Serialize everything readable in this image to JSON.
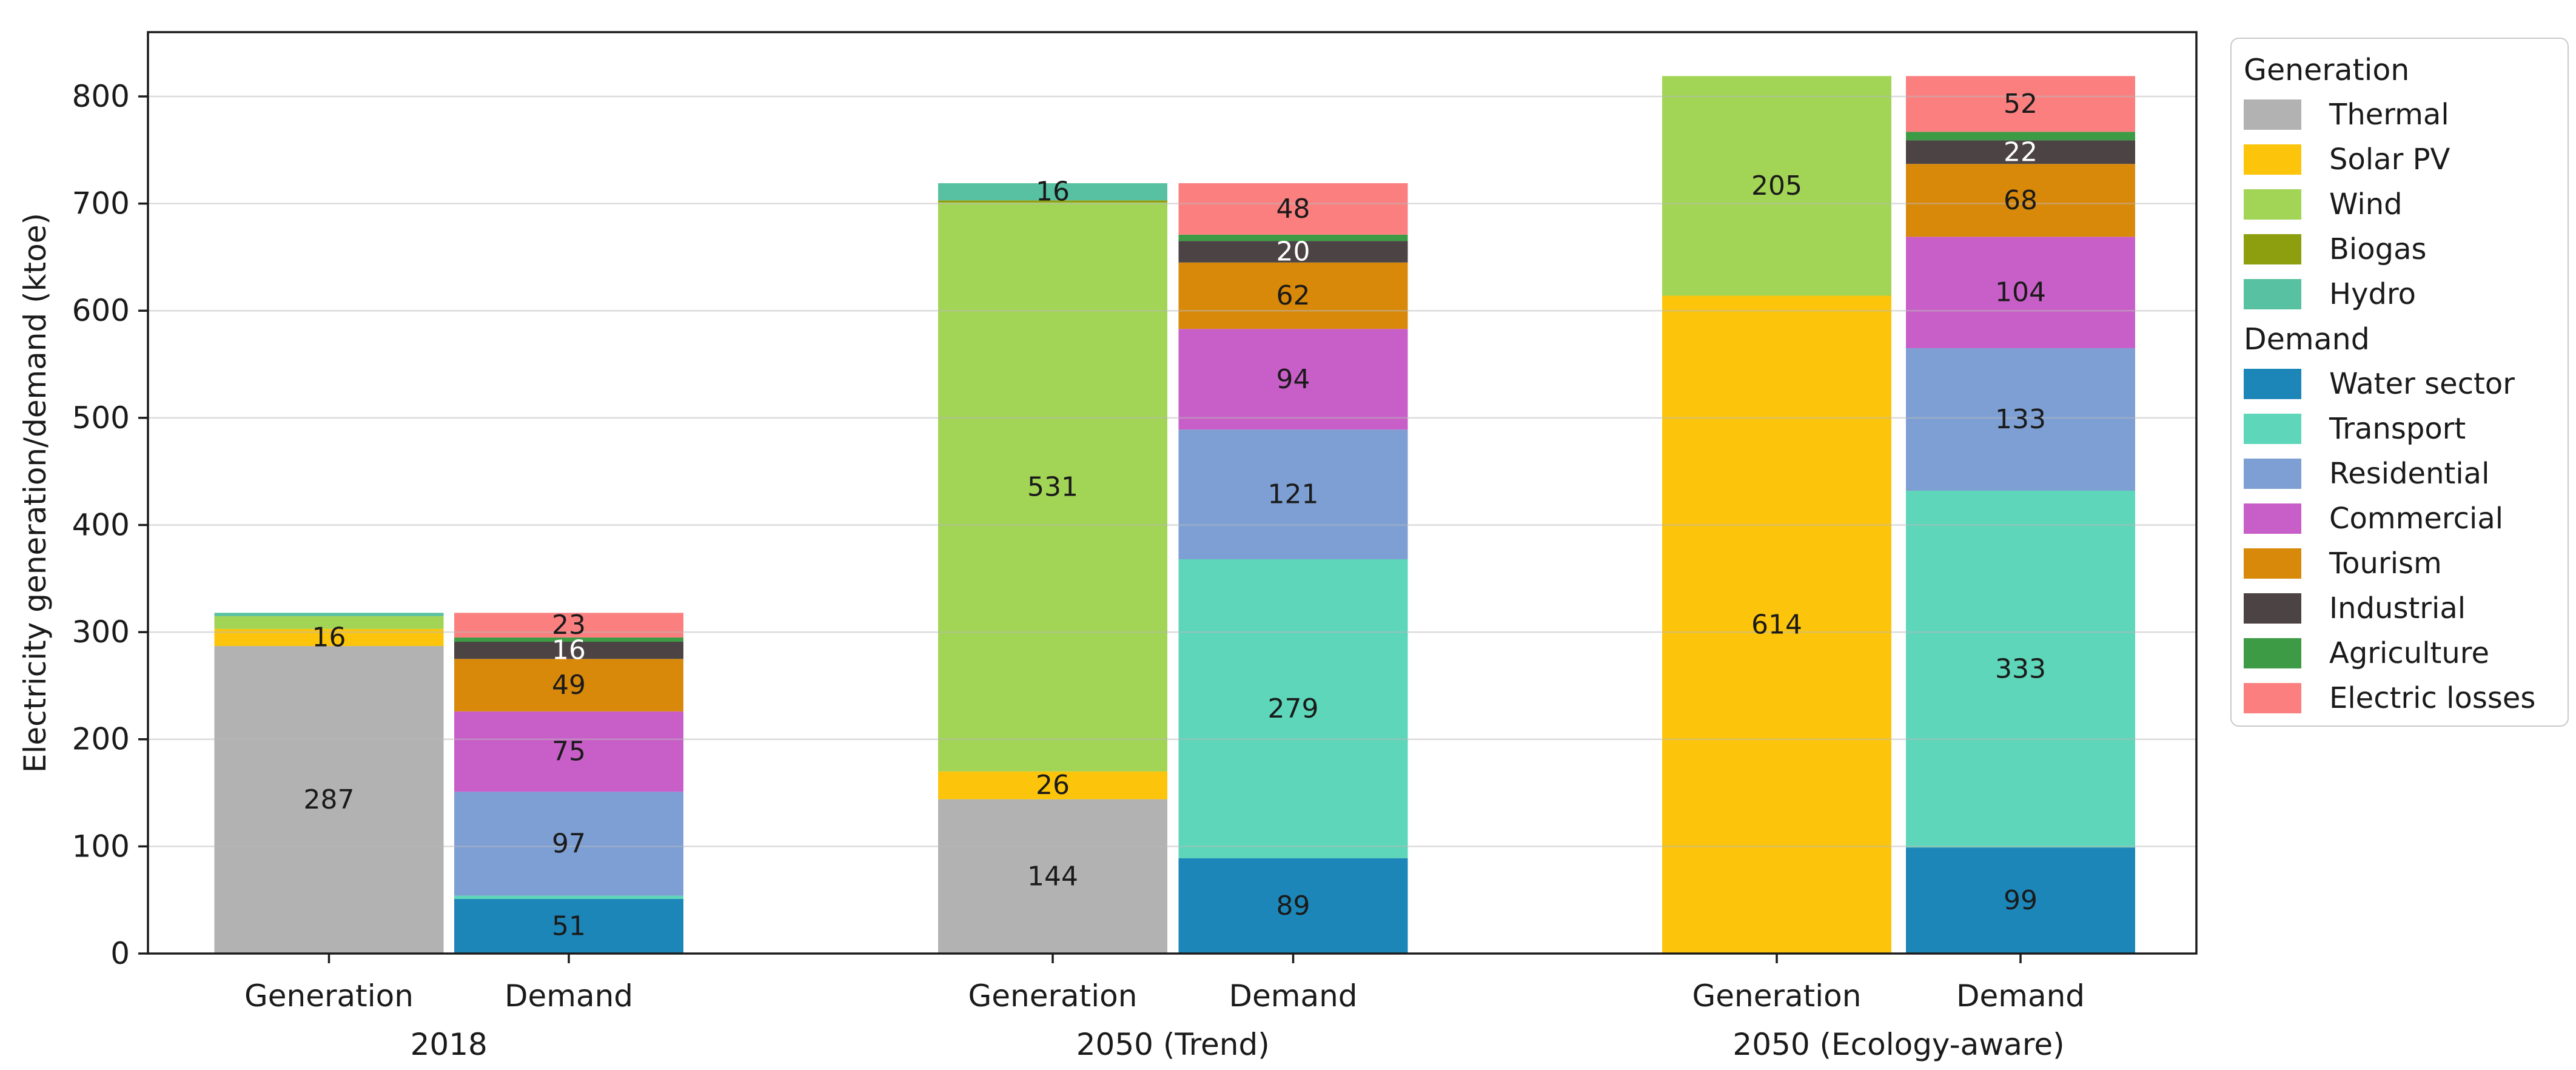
{
  "figure": {
    "background": "#ffffff"
  },
  "chart_data": {
    "type": "bar",
    "stacked": true,
    "title": "",
    "xlabel": "",
    "ylabel": "Electricity generation/demand (ktoe)",
    "ylim": [
      0,
      860
    ],
    "yticks": [
      0,
      100,
      200,
      300,
      400,
      500,
      600,
      700,
      800
    ],
    "grid": "horizontal",
    "legend_position": "right",
    "label_min": 16,
    "series_order": {
      "generation": [
        "Thermal",
        "Solar PV",
        "Wind",
        "Biogas",
        "Hydro"
      ],
      "demand": [
        "Water sector",
        "Transport",
        "Residential",
        "Commercial",
        "Tourism",
        "Industrial",
        "Agriculture",
        "Electric losses"
      ]
    },
    "palette": {
      "Thermal": {
        "color": "#b2b2b2",
        "label_color": "#1a1a1a"
      },
      "Solar PV": {
        "color": "#fcc50b",
        "label_color": "#1a1a1a"
      },
      "Wind": {
        "color": "#a2d455",
        "label_color": "#1a1a1a"
      },
      "Biogas": {
        "color": "#8d9f0f",
        "label_color": "#1a1a1a"
      },
      "Hydro": {
        "color": "#58c1a2",
        "label_color": "#1a1a1a"
      },
      "Water sector": {
        "color": "#1d86b8",
        "label_color": "#1a1a1a"
      },
      "Transport": {
        "color": "#5dd6b9",
        "label_color": "#1a1a1a"
      },
      "Residential": {
        "color": "#7d9fd3",
        "label_color": "#1a1a1a"
      },
      "Commercial": {
        "color": "#c85fc8",
        "label_color": "#1a1a1a"
      },
      "Tourism": {
        "color": "#d8890a",
        "label_color": "#1a1a1a"
      },
      "Industrial": {
        "color": "#4b4344",
        "label_color": "#ffffff"
      },
      "Agriculture": {
        "color": "#3e9b45",
        "label_color": "#1a1a1a"
      },
      "Electric losses": {
        "color": "#fb7f7f",
        "label_color": "#1a1a1a"
      }
    },
    "groups": [
      {
        "label": "2018",
        "bars": [
          {
            "label": "Generation",
            "type": "generation",
            "segments": {
              "Thermal": 287,
              "Solar PV": 16,
              "Wind": 12,
              "Biogas": 0,
              "Hydro": 3
            }
          },
          {
            "label": "Demand",
            "type": "demand",
            "segments": {
              "Water sector": 51,
              "Transport": 3,
              "Residential": 97,
              "Commercial": 75,
              "Tourism": 49,
              "Industrial": 16,
              "Agriculture": 4,
              "Electric losses": 23
            }
          }
        ]
      },
      {
        "label": "2050 (Trend)",
        "bars": [
          {
            "label": "Generation",
            "type": "generation",
            "segments": {
              "Thermal": 144,
              "Solar PV": 26,
              "Wind": 531,
              "Biogas": 2,
              "Hydro": 16
            }
          },
          {
            "label": "Demand",
            "type": "demand",
            "segments": {
              "Water sector": 89,
              "Transport": 279,
              "Residential": 121,
              "Commercial": 94,
              "Tourism": 62,
              "Industrial": 20,
              "Agriculture": 6,
              "Electric losses": 48
            }
          }
        ]
      },
      {
        "label": "2050 (Ecology-aware)",
        "bars": [
          {
            "label": "Generation",
            "type": "generation",
            "segments": {
              "Thermal": 0,
              "Solar PV": 614,
              "Wind": 205,
              "Biogas": 0,
              "Hydro": 0
            }
          },
          {
            "label": "Demand",
            "type": "demand",
            "segments": {
              "Water sector": 99,
              "Transport": 333,
              "Residential": 133,
              "Commercial": 104,
              "Tourism": 68,
              "Industrial": 22,
              "Agriculture": 8,
              "Electric losses": 52
            }
          }
        ]
      }
    ]
  },
  "legend": {
    "sections": [
      {
        "header": "Generation",
        "items": [
          "Thermal",
          "Solar PV",
          "Wind",
          "Biogas",
          "Hydro"
        ]
      },
      {
        "header": "Demand",
        "items": [
          "Water sector",
          "Transport",
          "Residential",
          "Commercial",
          "Tourism",
          "Industrial",
          "Agriculture",
          "Electric losses"
        ]
      }
    ]
  }
}
